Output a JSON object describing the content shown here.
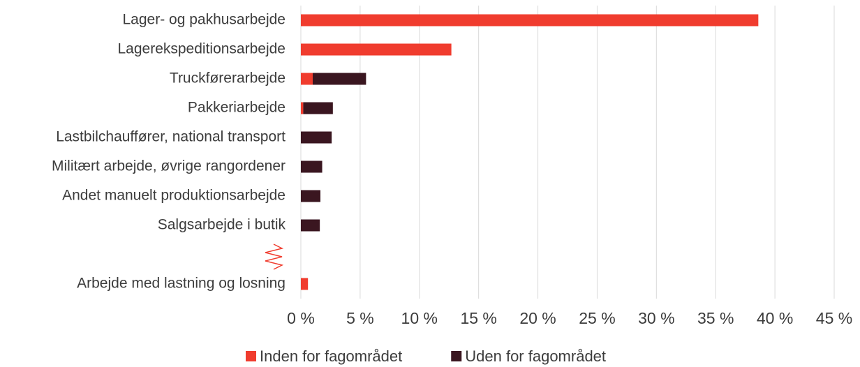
{
  "chart_data": {
    "type": "bar",
    "orientation": "horizontal",
    "stacked": true,
    "categories": [
      "Lager- og pakhusarbejde",
      "Lagerekspeditionsarbejde",
      "Truckførerarbejde",
      "Pakkeriarbejde",
      "Lastbilchauffører, national transport",
      "Militært arbejde, øvrige rangordener",
      "Andet manuelt produktionsarbejde",
      "Salgsarbejde i butik",
      null,
      "Arbejde med lastning og losning"
    ],
    "series": [
      {
        "name": "Inden for fagområdet",
        "color": "#f03c2e",
        "values": [
          38.6,
          12.7,
          1.0,
          0.2,
          0,
          0,
          0,
          0,
          null,
          0.6
        ]
      },
      {
        "name": "Uden for fagområdet",
        "color": "#3a1620",
        "values": [
          0,
          0,
          4.5,
          2.5,
          2.6,
          1.8,
          1.65,
          1.6,
          null,
          0
        ]
      }
    ],
    "xlim": [
      0,
      45
    ],
    "xticks": [
      {
        "value": 0,
        "label": "0 %"
      },
      {
        "value": 5,
        "label": "5 %"
      },
      {
        "value": 10,
        "label": "10 %"
      },
      {
        "value": 15,
        "label": "15 %"
      },
      {
        "value": 20,
        "label": "20 %"
      },
      {
        "value": 25,
        "label": "25 %"
      },
      {
        "value": 30,
        "label": "30 %"
      },
      {
        "value": 35,
        "label": "35 %"
      },
      {
        "value": 40,
        "label": "40 %"
      },
      {
        "value": 45,
        "label": "45 %"
      }
    ],
    "grid": true,
    "legend": "bottom"
  }
}
